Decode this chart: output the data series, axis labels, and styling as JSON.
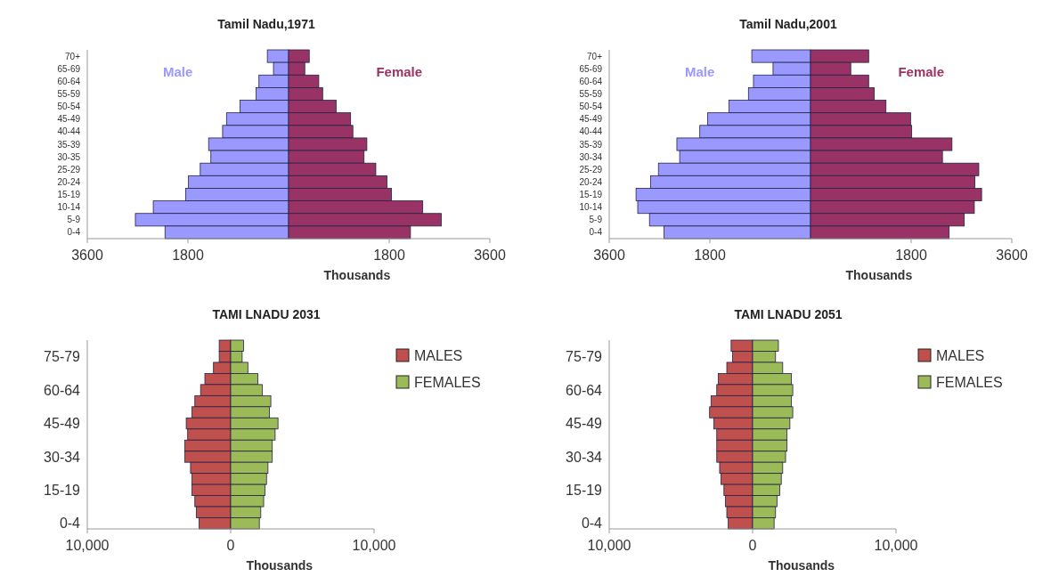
{
  "chart_data": [
    {
      "type": "bar",
      "title": "Tamil Nadu,1971",
      "orientation": "horizontal",
      "stacked": true,
      "legend": false,
      "xlabel": "Thousands",
      "categories": [
        "70+",
        "65-69",
        "60-64",
        "55-59",
        "50-54",
        "45-49",
        "40-44",
        "35-39",
        "30-35",
        "25-29",
        "20-24",
        "15-19",
        "10-14",
        "5-9",
        "0-4"
      ],
      "xlim": [
        -3600,
        3600
      ],
      "xticks": [
        {
          "value": -3600,
          "label": "3600"
        },
        {
          "value": -1800,
          "label": "1800"
        },
        1800,
        3600
      ],
      "series": [
        {
          "name": "Male",
          "color": "#9999ff",
          "values": [
            -380,
            -270,
            -530,
            -580,
            -870,
            -1110,
            -1180,
            -1430,
            -1390,
            -1580,
            -1790,
            -1840,
            -2420,
            -2740,
            -2210
          ]
        },
        {
          "name": "Female",
          "color": "#993366",
          "values": [
            370,
            290,
            540,
            610,
            850,
            1110,
            1150,
            1400,
            1350,
            1560,
            1760,
            1840,
            2400,
            2730,
            2180
          ]
        }
      ]
    },
    {
      "type": "bar",
      "title": "Tamil Nadu,2001",
      "orientation": "horizontal",
      "stacked": true,
      "legend": false,
      "xlabel": "Thousands",
      "categories": [
        "70+",
        "65-69",
        "60-64",
        "55-59",
        "50-54",
        "45-49",
        "40-44",
        "35-39",
        "30-34",
        "25-29",
        "20-24",
        "15-19",
        "10-14",
        "5-9",
        "0-4"
      ],
      "xlim": [
        -3600,
        3600
      ],
      "xticks": [
        {
          "value": -3600,
          "label": "3600"
        },
        {
          "value": -1800,
          "label": "1800"
        },
        1800,
        3600
      ],
      "series": [
        {
          "name": "Male",
          "color": "#9999ff",
          "values": [
            -1050,
            -670,
            -1020,
            -1110,
            -1460,
            -1840,
            -1980,
            -2390,
            -2340,
            -2720,
            -2860,
            -3120,
            -3090,
            -2880,
            -2620
          ]
        },
        {
          "name": "Female",
          "color": "#993366",
          "values": [
            1040,
            720,
            1040,
            1140,
            1350,
            1790,
            1810,
            2530,
            2360,
            3010,
            2940,
            3060,
            2930,
            2750,
            2480
          ]
        }
      ]
    },
    {
      "type": "bar",
      "title": "TAMI LNADU 2031",
      "orientation": "horizontal",
      "stacked": true,
      "legend": "right",
      "xlabel": "Thousands",
      "categories": [
        null,
        "75-79",
        null,
        null,
        "60-64",
        null,
        null,
        "45-49",
        null,
        null,
        "30-34",
        null,
        null,
        "15-19",
        null,
        null,
        "0-4"
      ],
      "xlim": [
        -10000,
        10000
      ],
      "xticks": [
        {
          "value": -10000,
          "label": "10,000"
        },
        0,
        {
          "value": 10000,
          "label": "10,000"
        }
      ],
      "series": [
        {
          "name": "MALES",
          "color": "#c0504d",
          "values": [
            -800,
            -800,
            -1200,
            -1800,
            -2100,
            -2500,
            -2700,
            -3100,
            -3000,
            -3200,
            -3200,
            -2800,
            -2700,
            -2700,
            -2500,
            -2400,
            -2200
          ]
        },
        {
          "name": "FEMALES",
          "color": "#9bbb59",
          "values": [
            900,
            800,
            1200,
            1900,
            2200,
            2800,
            2700,
            3300,
            3100,
            2900,
            2900,
            2600,
            2500,
            2400,
            2300,
            2100,
            2000
          ]
        }
      ]
    },
    {
      "type": "bar",
      "title": "TAMI LNADU 2051",
      "orientation": "horizontal",
      "stacked": true,
      "legend": "right",
      "xlabel": "Thousands",
      "categories": [
        null,
        "75-79",
        null,
        null,
        "60-64",
        null,
        null,
        "45-49",
        null,
        null,
        "30-34",
        null,
        null,
        "15-19",
        null,
        null,
        "0-4"
      ],
      "xlim": [
        -10000,
        10000
      ],
      "xticks": [
        {
          "value": -10000,
          "label": "10,000"
        },
        0,
        {
          "value": 10000,
          "label": "10,000"
        }
      ],
      "series": [
        {
          "name": "MALES",
          "color": "#c0504d",
          "values": [
            -1500,
            -1400,
            -1800,
            -2400,
            -2500,
            -2900,
            -3000,
            -2700,
            -2500,
            -2500,
            -2500,
            -2300,
            -2200,
            -2000,
            -1900,
            -1800,
            -1700
          ]
        },
        {
          "name": "FEMALES",
          "color": "#9bbb59",
          "values": [
            1800,
            1600,
            2100,
            2700,
            2800,
            2700,
            2800,
            2600,
            2400,
            2400,
            2300,
            2100,
            2000,
            1900,
            1700,
            1600,
            1500
          ]
        }
      ]
    }
  ]
}
